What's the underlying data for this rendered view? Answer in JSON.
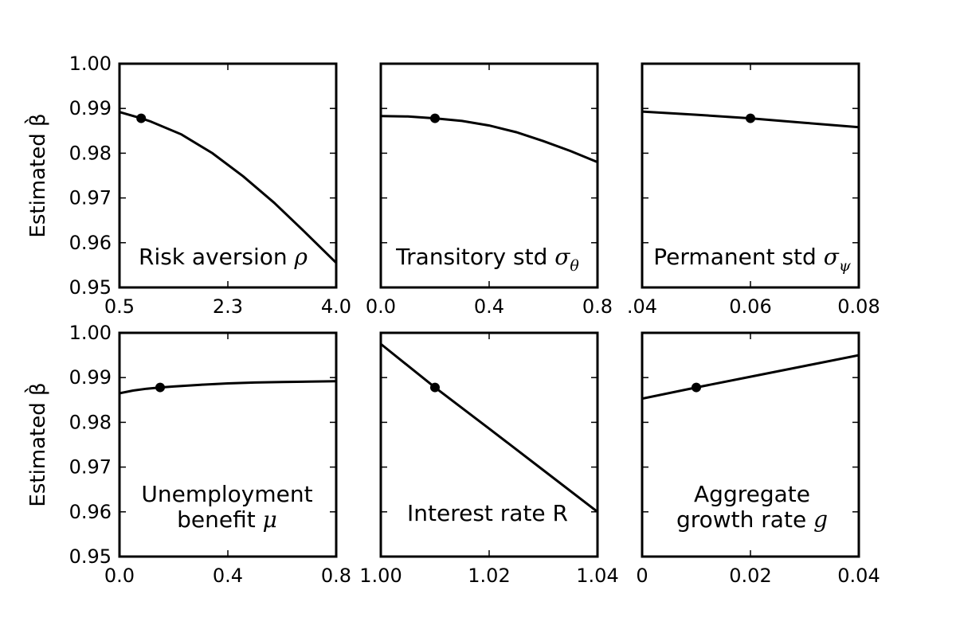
{
  "figure": {
    "ylabel": "Estimated",
    "ylabel_symbol": "β̀"
  },
  "chart_data": [
    {
      "type": "line",
      "label": {
        "lines": [
          {
            "text": "Risk aversion ",
            "symbol": "ρ",
            "sub": ""
          }
        ]
      },
      "ylabel": "Estimated β̀",
      "xlim": [
        0.5,
        4.0
      ],
      "ylim": [
        0.95,
        1.0
      ],
      "xticks": [
        {
          "v": 0.5,
          "t": "0.5"
        },
        {
          "v": 2.25,
          "t": "2.3"
        },
        {
          "v": 4.0,
          "t": "4.0"
        }
      ],
      "yticks": [
        {
          "v": 0.95,
          "t": "0.95"
        },
        {
          "v": 0.96,
          "t": "0.96"
        },
        {
          "v": 0.97,
          "t": "0.97"
        },
        {
          "v": 0.98,
          "t": "0.98"
        },
        {
          "v": 0.99,
          "t": "0.99"
        },
        {
          "v": 1.0,
          "t": "1.00"
        }
      ],
      "x": [
        0.5,
        0.85,
        1.0,
        1.5,
        2.0,
        2.5,
        3.0,
        3.5,
        4.0
      ],
      "y": [
        0.9892,
        0.9878,
        0.9871,
        0.9842,
        0.98,
        0.9748,
        0.9689,
        0.9623,
        0.9555
      ],
      "point": {
        "x": 0.85,
        "y": 0.9878
      }
    },
    {
      "type": "line",
      "label": {
        "lines": [
          {
            "text": "Transitory std ",
            "symbol": "σ",
            "sub": "θ"
          }
        ]
      },
      "xlim": [
        0.0,
        0.8
      ],
      "ylim": [
        0.95,
        1.0
      ],
      "xticks": [
        {
          "v": 0.0,
          "t": "0.0"
        },
        {
          "v": 0.4,
          "t": "0.4"
        },
        {
          "v": 0.8,
          "t": "0.8"
        }
      ],
      "yticks": [],
      "x": [
        0.0,
        0.1,
        0.2,
        0.3,
        0.4,
        0.5,
        0.6,
        0.7,
        0.8
      ],
      "y": [
        0.9883,
        0.9882,
        0.9878,
        0.9872,
        0.9862,
        0.9847,
        0.9827,
        0.9805,
        0.978
      ],
      "point": {
        "x": 0.2,
        "y": 0.9878
      }
    },
    {
      "type": "line",
      "label": {
        "lines": [
          {
            "text": "Permanent std ",
            "symbol": "σ",
            "sub": "ψ"
          }
        ]
      },
      "xlim": [
        0.04,
        0.08
      ],
      "ylim": [
        0.95,
        1.0
      ],
      "xticks": [
        {
          "v": 0.04,
          "t": ".04"
        },
        {
          "v": 0.06,
          "t": "0.06"
        },
        {
          "v": 0.08,
          "t": "0.08"
        }
      ],
      "yticks": [],
      "x": [
        0.04,
        0.05,
        0.06,
        0.07,
        0.08
      ],
      "y": [
        0.9893,
        0.9886,
        0.9878,
        0.9868,
        0.9858
      ],
      "point": {
        "x": 0.06,
        "y": 0.9878
      }
    },
    {
      "type": "line",
      "label": {
        "lines": [
          {
            "text": "Unemployment",
            "symbol": "",
            "sub": ""
          },
          {
            "text": "benefit ",
            "symbol": "μ",
            "sub": ""
          }
        ]
      },
      "ylabel": "Estimated β̀",
      "xlim": [
        0.0,
        0.8
      ],
      "ylim": [
        0.95,
        1.0
      ],
      "xticks": [
        {
          "v": 0.0,
          "t": "0.0"
        },
        {
          "v": 0.4,
          "t": "0.4"
        },
        {
          "v": 0.8,
          "t": "0.8"
        }
      ],
      "yticks": [
        {
          "v": 0.95,
          "t": "0.95"
        },
        {
          "v": 0.96,
          "t": "0.96"
        },
        {
          "v": 0.97,
          "t": "0.97"
        },
        {
          "v": 0.98,
          "t": "0.98"
        },
        {
          "v": 0.99,
          "t": "0.99"
        },
        {
          "v": 1.0,
          "t": "1.00"
        }
      ],
      "x": [
        0.0,
        0.05,
        0.1,
        0.15,
        0.2,
        0.3,
        0.4,
        0.5,
        0.6,
        0.7,
        0.8
      ],
      "y": [
        0.9865,
        0.9871,
        0.9875,
        0.9878,
        0.988,
        0.9884,
        0.9887,
        0.9889,
        0.989,
        0.9891,
        0.9892
      ],
      "point": {
        "x": 0.15,
        "y": 0.9878
      }
    },
    {
      "type": "line",
      "label": {
        "lines": [
          {
            "text": "Interest rate R",
            "symbol": "",
            "sub": ""
          }
        ]
      },
      "xlim": [
        1.0,
        1.04
      ],
      "ylim": [
        0.95,
        1.0
      ],
      "xticks": [
        {
          "v": 1.0,
          "t": "1.00"
        },
        {
          "v": 1.02,
          "t": "1.02"
        },
        {
          "v": 1.04,
          "t": "1.04"
        }
      ],
      "yticks": [],
      "x": [
        1.0,
        1.01,
        1.02,
        1.03,
        1.04
      ],
      "y": [
        0.9975,
        0.9878,
        0.9786,
        0.9693,
        0.96
      ],
      "point": {
        "x": 1.01,
        "y": 0.9878
      }
    },
    {
      "type": "line",
      "label": {
        "lines": [
          {
            "text": "Aggregate",
            "symbol": "",
            "sub": ""
          },
          {
            "text": "growth rate ",
            "symbol": "g",
            "sub": ""
          }
        ]
      },
      "xlim": [
        0.0,
        0.04
      ],
      "ylim": [
        0.95,
        1.0
      ],
      "xticks": [
        {
          "v": 0.0,
          "t": "0"
        },
        {
          "v": 0.02,
          "t": "0.02"
        },
        {
          "v": 0.04,
          "t": "0.04"
        }
      ],
      "yticks": [],
      "x": [
        0.0,
        0.01,
        0.02,
        0.03,
        0.04
      ],
      "y": [
        0.9853,
        0.9878,
        0.9902,
        0.9926,
        0.995
      ],
      "point": {
        "x": 0.01,
        "y": 0.9878
      }
    }
  ]
}
